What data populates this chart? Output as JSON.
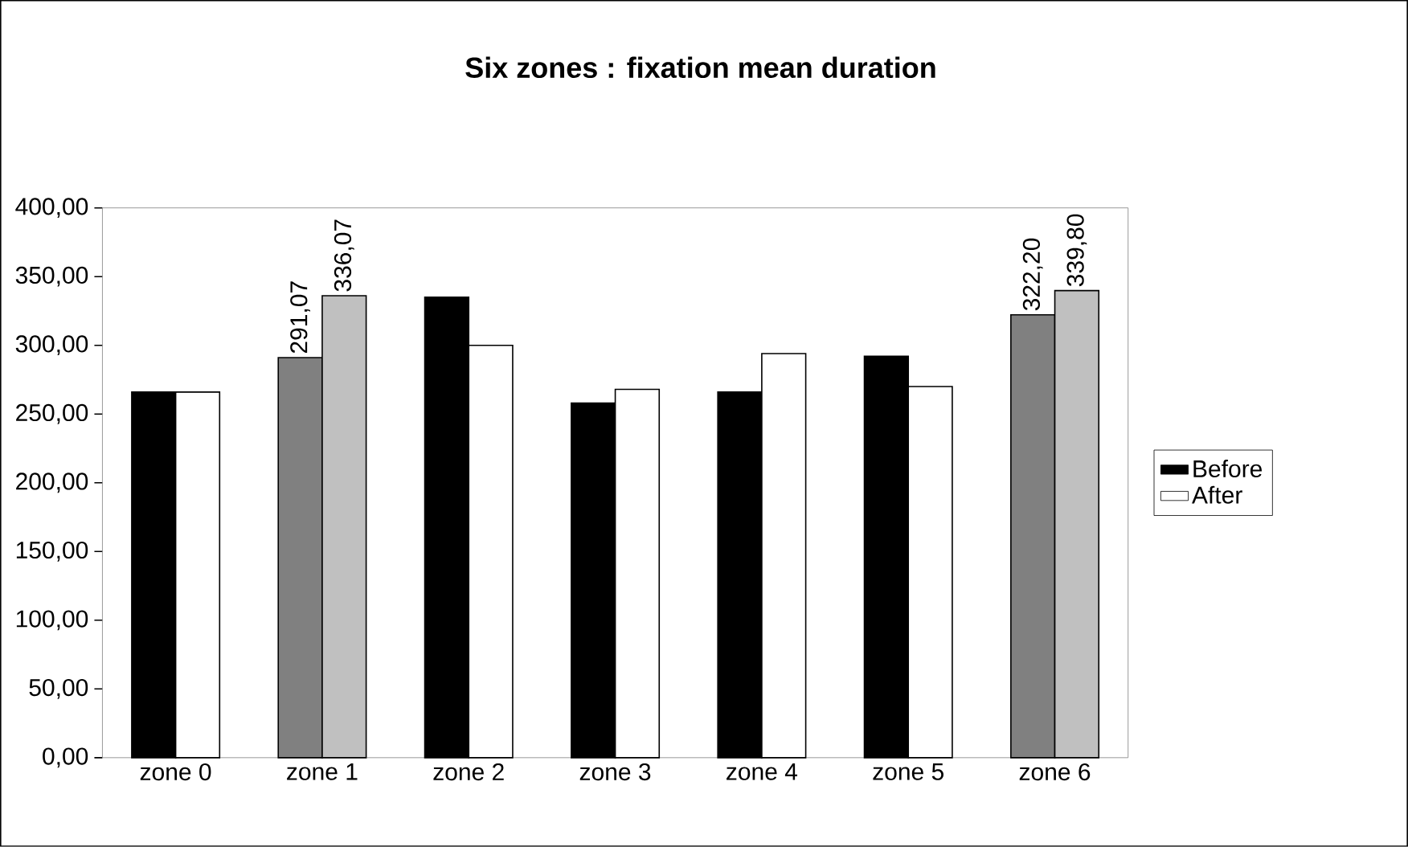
{
  "chart_data": {
    "type": "bar",
    "title": "Six zones : fixation mean duration",
    "categories": [
      "zone 0",
      "zone 1",
      "zone 2",
      "zone 3",
      "zone 4",
      "zone 5",
      "zone 6"
    ],
    "series": [
      {
        "name": "Before",
        "color": "#000000",
        "colors": [
          "#000000",
          "#808080",
          "#000000",
          "#000000",
          "#000000",
          "#000000",
          "#808080"
        ],
        "values": [
          266,
          291.07,
          335,
          258,
          266,
          292,
          322.2
        ],
        "value_labels": [
          null,
          "291,07",
          null,
          null,
          null,
          null,
          "322,20"
        ]
      },
      {
        "name": "After",
        "color": "#ffffff",
        "colors": [
          "#ffffff",
          "#c0c0c0",
          "#ffffff",
          "#ffffff",
          "#ffffff",
          "#ffffff",
          "#c0c0c0"
        ],
        "values": [
          266,
          336.07,
          300,
          268,
          294,
          270,
          339.8
        ],
        "value_labels": [
          null,
          "336,07",
          null,
          null,
          null,
          null,
          "339,80"
        ]
      }
    ],
    "ylim": [
      0,
      400
    ],
    "yticks": [
      {
        "value": 0,
        "label": "0,00"
      },
      {
        "value": 50,
        "label": "50,00"
      },
      {
        "value": 100,
        "label": "100,00"
      },
      {
        "value": 150,
        "label": "150,00"
      },
      {
        "value": 200,
        "label": "200,00"
      },
      {
        "value": 250,
        "label": "250,00"
      },
      {
        "value": 300,
        "label": "300,00"
      },
      {
        "value": 350,
        "label": "350,00"
      },
      {
        "value": 400,
        "label": "400,00"
      }
    ],
    "grid": false,
    "legend": "right"
  }
}
